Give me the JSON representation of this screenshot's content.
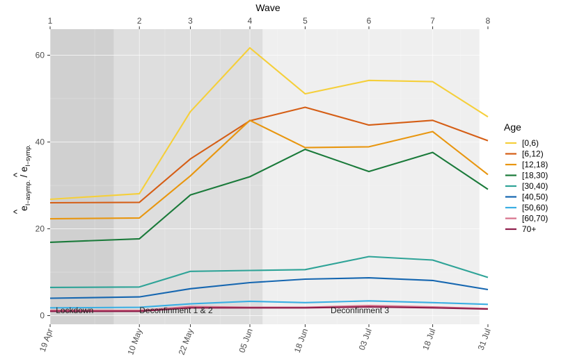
{
  "chart_data": {
    "type": "line",
    "top_axis_title": "Wave",
    "y_label_main": "e",
    "y_label_num_sub": "I−asymp.",
    "y_label_sep": " / ",
    "y_label_den_sub": "I−symp.",
    "y_label_hat": "^",
    "ylim": [
      -2,
      66
    ],
    "y_ticks": [
      0,
      20,
      40,
      60
    ],
    "y_tick_labels": [
      "0",
      "20",
      "40",
      "60"
    ],
    "x_labels": [
      "19 Apr",
      "10 May",
      "22 May",
      "05 Jun",
      "18 Jun",
      "03 Jul",
      "18 Jul",
      "31 Jul"
    ],
    "x_days": [
      0,
      21,
      33,
      47,
      60,
      75,
      90,
      103
    ],
    "waves": [
      "1",
      "2",
      "3",
      "4",
      "5",
      "6",
      "7",
      "8"
    ],
    "phases": [
      {
        "label": "Lockdown",
        "start_day": 0,
        "end_day": 15,
        "color": "#d0d0d0"
      },
      {
        "label": "Deconfinment 1 & 2",
        "start_day": 15,
        "end_day": 50,
        "color": "#dedede"
      },
      {
        "label": "Deconfinment 3",
        "start_day": 50,
        "end_day": 101,
        "color": "#efefef"
      }
    ],
    "grid": true,
    "legend_title": "Age",
    "legend_position": "right",
    "series": [
      {
        "name": "[0,6)",
        "color": "#f5cf3a",
        "values": [
          26.8,
          28.1,
          47.0,
          61.7,
          51.1,
          54.2,
          53.9,
          45.8
        ]
      },
      {
        "name": "[6,12)",
        "color": "#d55e15",
        "values": [
          26.0,
          26.1,
          36.1,
          44.9,
          48.0,
          43.9,
          45.0,
          40.3
        ]
      },
      {
        "name": "[12,18)",
        "color": "#e8960f",
        "values": [
          22.3,
          22.5,
          32.2,
          45.0,
          38.7,
          38.9,
          42.4,
          32.5
        ]
      },
      {
        "name": "[18,30)",
        "color": "#1a7a3a",
        "values": [
          16.9,
          17.7,
          27.8,
          32.0,
          38.3,
          33.2,
          37.6,
          29.1
        ]
      },
      {
        "name": "[30,40)",
        "color": "#2ea397",
        "values": [
          6.5,
          6.6,
          10.2,
          10.4,
          10.6,
          13.6,
          12.8,
          8.8
        ]
      },
      {
        "name": "[40,50)",
        "color": "#1566b0",
        "values": [
          4.0,
          4.3,
          6.2,
          7.6,
          8.4,
          8.7,
          8.1,
          6.0
        ]
      },
      {
        "name": "[50,60)",
        "color": "#3aaee3",
        "values": [
          1.8,
          1.9,
          2.7,
          3.3,
          3.0,
          3.4,
          3.0,
          2.6
        ]
      },
      {
        "name": "[60,70)",
        "color": "#d7708a",
        "values": [
          1.2,
          1.2,
          2.1,
          1.9,
          1.9,
          2.3,
          2.0,
          1.6
        ]
      },
      {
        "name": "70+",
        "color": "#8e1e4a",
        "values": [
          1.0,
          1.0,
          1.8,
          1.8,
          1.8,
          2.0,
          1.8,
          1.5
        ]
      }
    ]
  }
}
